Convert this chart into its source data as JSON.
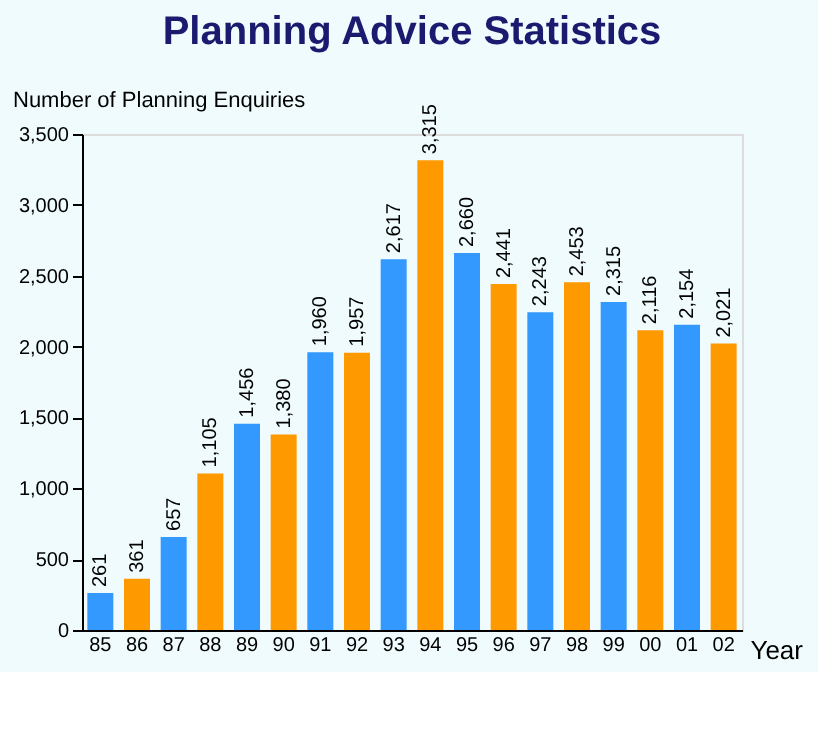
{
  "chart_data": {
    "type": "bar",
    "title": "Planning Advice Statistics",
    "ylabel": "Number of Planning Enquiries",
    "xlabel": "Year",
    "categories": [
      "85",
      "86",
      "87",
      "88",
      "89",
      "90",
      "91",
      "92",
      "93",
      "94",
      "95",
      "96",
      "97",
      "98",
      "99",
      "00",
      "01",
      "02"
    ],
    "values": [
      261,
      361,
      657,
      1105,
      1456,
      1380,
      1960,
      1957,
      2617,
      3315,
      2660,
      2441,
      2243,
      2453,
      2315,
      2116,
      2154,
      2021
    ],
    "colors": [
      "#3399ff",
      "#ff9900",
      "#3399ff",
      "#ff9900",
      "#3399ff",
      "#ff9900",
      "#3399ff",
      "#ff9900",
      "#3399ff",
      "#ff9900",
      "#3399ff",
      "#ff9900",
      "#3399ff",
      "#ff9900",
      "#3399ff",
      "#ff9900",
      "#3399ff",
      "#ff9900"
    ],
    "value_labels": [
      "261",
      "361",
      "657",
      "1,105",
      "1,456",
      "1,380",
      "1,960",
      "1,957",
      "2,617",
      "3,315",
      "2,660",
      "2,441",
      "2,243",
      "2,453",
      "2,315",
      "2,116",
      "2,154",
      "2,021"
    ],
    "ylim": [
      0,
      3500
    ],
    "yticks": [
      0,
      {
        "value": 500,
        "label": "500"
      },
      {
        "value": 1000,
        "label": "1,000"
      },
      {
        "value": 1500,
        "label": "1,500"
      },
      {
        "value": 2000,
        "label": "2,000"
      },
      {
        "value": 2500,
        "label": "2,500"
      },
      {
        "value": 3000,
        "label": "3,000"
      },
      {
        "value": 3500,
        "label": "3,500"
      }
    ],
    "grid": false
  }
}
